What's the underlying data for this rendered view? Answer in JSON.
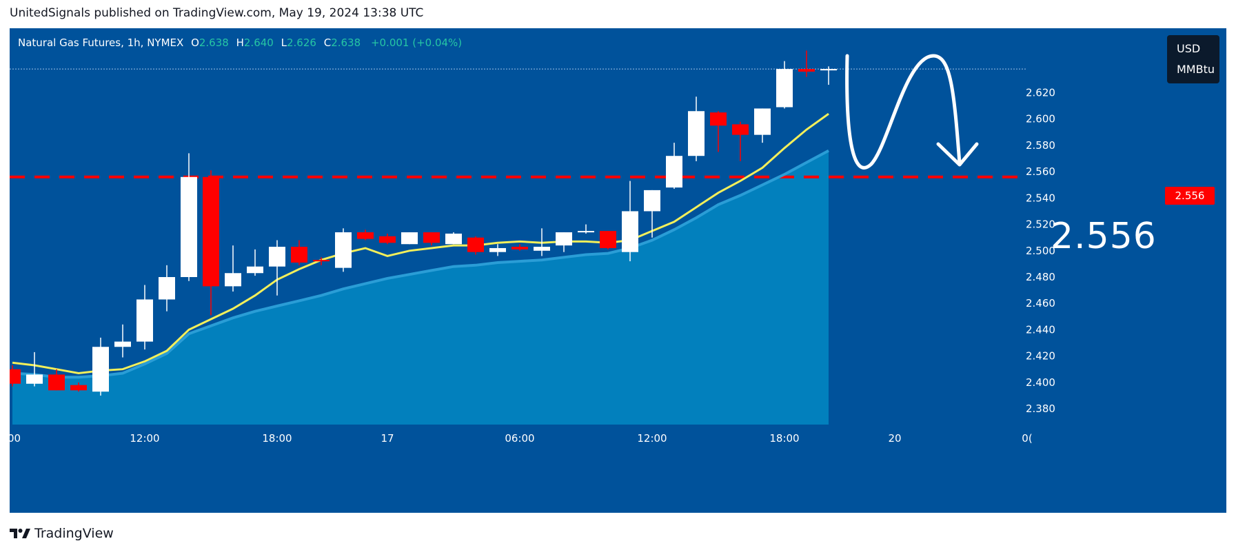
{
  "header": {
    "published_line": "UnitedSignals published on TradingView.com, May 19, 2024 13:38 UTC"
  },
  "legend": {
    "symbol": "Natural Gas Futures, 1h, NYMEX",
    "open_label": "O",
    "open": "2.638",
    "high_label": "H",
    "high": "2.640",
    "low_label": "L",
    "low": "2.626",
    "close_label": "C",
    "close": "2.638",
    "change": "+0.001 (+0.04%)"
  },
  "unit": {
    "currency": "USD",
    "unit": "MMBtu"
  },
  "level": {
    "tag": "2.556",
    "big_label": "2.556"
  },
  "footer": {
    "brand": "TradingView"
  },
  "colors": {
    "background": "#00529b",
    "up_candle": "#ffffff",
    "down_candle": "#ff0000",
    "ema_fast": "#f3ef5a",
    "ema_slow": "#2a9dd6",
    "area": "#0283bf",
    "level_line": "#ff0000",
    "arrow": "#ffffff"
  },
  "chart_data": {
    "type": "candlestick",
    "y_axis": {
      "range": [
        2.368,
        2.648
      ],
      "ticks": [
        2.38,
        2.4,
        2.42,
        2.44,
        2.46,
        2.48,
        2.5,
        2.52,
        2.54,
        2.56,
        2.58,
        2.6,
        2.62
      ]
    },
    "x_axis": {
      "ticks": [
        {
          "label": ":00",
          "index": 0
        },
        {
          "label": "12:00",
          "index": 6
        },
        {
          "label": "18:00",
          "index": 12
        },
        {
          "label": "17",
          "index": 17
        },
        {
          "label": "06:00",
          "index": 23
        },
        {
          "label": "12:00",
          "index": 29
        },
        {
          "label": "18:00",
          "index": 35
        },
        {
          "label": "20",
          "index": 40
        },
        {
          "label": "0(",
          "index": 46
        }
      ]
    },
    "horizontal_level": 2.556,
    "candles": [
      {
        "o": 2.41,
        "h": 2.413,
        "l": 2.397,
        "c": 2.399
      },
      {
        "o": 2.399,
        "h": 2.423,
        "l": 2.397,
        "c": 2.406
      },
      {
        "o": 2.406,
        "h": 2.41,
        "l": 2.394,
        "c": 2.394
      },
      {
        "o": 2.398,
        "h": 2.4,
        "l": 2.393,
        "c": 2.394
      },
      {
        "o": 2.393,
        "h": 2.434,
        "l": 2.39,
        "c": 2.427
      },
      {
        "o": 2.427,
        "h": 2.444,
        "l": 2.419,
        "c": 2.431
      },
      {
        "o": 2.431,
        "h": 2.474,
        "l": 2.425,
        "c": 2.463
      },
      {
        "o": 2.463,
        "h": 2.489,
        "l": 2.454,
        "c": 2.48
      },
      {
        "o": 2.48,
        "h": 2.574,
        "l": 2.477,
        "c": 2.556
      },
      {
        "o": 2.556,
        "h": 2.561,
        "l": 2.451,
        "c": 2.473
      },
      {
        "o": 2.473,
        "h": 2.504,
        "l": 2.469,
        "c": 2.483
      },
      {
        "o": 2.483,
        "h": 2.501,
        "l": 2.481,
        "c": 2.488
      },
      {
        "o": 2.488,
        "h": 2.508,
        "l": 2.466,
        "c": 2.503
      },
      {
        "o": 2.503,
        "h": 2.508,
        "l": 2.489,
        "c": 2.491
      },
      {
        "o": 2.493,
        "h": 2.495,
        "l": 2.489,
        "c": 2.492
      },
      {
        "o": 2.487,
        "h": 2.517,
        "l": 2.484,
        "c": 2.514
      },
      {
        "o": 2.514,
        "h": 2.516,
        "l": 2.508,
        "c": 2.509
      },
      {
        "o": 2.511,
        "h": 2.513,
        "l": 2.505,
        "c": 2.506
      },
      {
        "o": 2.505,
        "h": 2.514,
        "l": 2.505,
        "c": 2.514
      },
      {
        "o": 2.514,
        "h": 2.514,
        "l": 2.504,
        "c": 2.506
      },
      {
        "o": 2.505,
        "h": 2.514,
        "l": 2.505,
        "c": 2.513
      },
      {
        "o": 2.51,
        "h": 2.511,
        "l": 2.497,
        "c": 2.499
      },
      {
        "o": 2.499,
        "h": 2.505,
        "l": 2.496,
        "c": 2.502
      },
      {
        "o": 2.503,
        "h": 2.505,
        "l": 2.5,
        "c": 2.501
      },
      {
        "o": 2.5,
        "h": 2.517,
        "l": 2.496,
        "c": 2.503
      },
      {
        "o": 2.504,
        "h": 2.514,
        "l": 2.499,
        "c": 2.514
      },
      {
        "o": 2.515,
        "h": 2.52,
        "l": 2.513,
        "c": 2.515
      },
      {
        "o": 2.515,
        "h": 2.515,
        "l": 2.501,
        "c": 2.502
      },
      {
        "o": 2.499,
        "h": 2.553,
        "l": 2.492,
        "c": 2.53
      },
      {
        "o": 2.53,
        "h": 2.546,
        "l": 2.51,
        "c": 2.546
      },
      {
        "o": 2.548,
        "h": 2.582,
        "l": 2.547,
        "c": 2.572
      },
      {
        "o": 2.572,
        "h": 2.617,
        "l": 2.568,
        "c": 2.606
      },
      {
        "o": 2.605,
        "h": 2.606,
        "l": 2.575,
        "c": 2.595
      },
      {
        "o": 2.596,
        "h": 2.598,
        "l": 2.568,
        "c": 2.588
      },
      {
        "o": 2.588,
        "h": 2.608,
        "l": 2.582,
        "c": 2.608
      },
      {
        "o": 2.609,
        "h": 2.644,
        "l": 2.608,
        "c": 2.638
      },
      {
        "o": 2.638,
        "h": 2.652,
        "l": 2.632,
        "c": 2.636
      },
      {
        "o": 2.638,
        "h": 2.64,
        "l": 2.626,
        "c": 2.638
      }
    ],
    "ema_fast": [
      2.415,
      2.413,
      2.41,
      2.407,
      2.409,
      2.41,
      2.416,
      2.424,
      2.44,
      2.448,
      2.456,
      2.466,
      2.478,
      2.486,
      2.493,
      2.498,
      2.502,
      2.496,
      2.5,
      2.502,
      2.504,
      2.504,
      2.506,
      2.507,
      2.506,
      2.507,
      2.507,
      2.506,
      2.508,
      2.515,
      2.522,
      2.533,
      2.544,
      2.553,
      2.563,
      2.578,
      2.592,
      2.604
    ],
    "ema_slow": [
      2.407,
      2.406,
      2.404,
      2.404,
      2.405,
      2.407,
      2.414,
      2.422,
      2.437,
      2.443,
      2.449,
      2.454,
      2.458,
      2.462,
      2.466,
      2.471,
      2.475,
      2.479,
      2.482,
      2.485,
      2.488,
      2.489,
      2.491,
      2.492,
      2.493,
      2.495,
      2.497,
      2.498,
      2.502,
      2.508,
      2.516,
      2.525,
      2.535,
      2.542,
      2.55,
      2.558,
      2.567,
      2.576
    ]
  }
}
